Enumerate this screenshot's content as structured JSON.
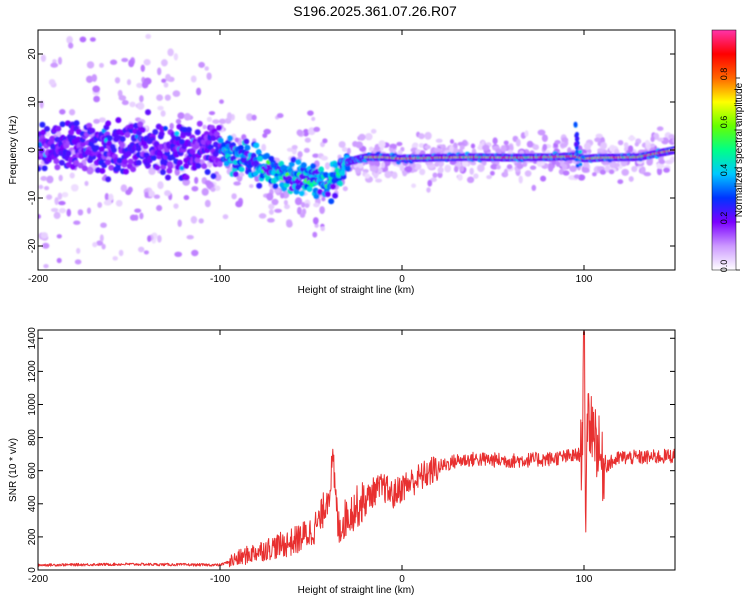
{
  "title": "S196.2025.361.07.26.R07",
  "chart_data": [
    {
      "type": "heatmap",
      "xlabel": "Height of straight line (km)",
      "ylabel": "Frequency (Hz)",
      "xlim": [
        -200,
        150
      ],
      "ylim": [
        -25,
        25
      ],
      "xticks": [
        -200,
        -100,
        0,
        100
      ],
      "xtick_labels": [
        "-200",
        "-100",
        "0",
        "100"
      ],
      "yticks": [
        -20,
        -10,
        0,
        10,
        20
      ],
      "ytick_labels": [
        "-20",
        "-10",
        "0",
        "10",
        "20"
      ],
      "ridge_x": [
        -200,
        -180,
        -160,
        -140,
        -120,
        -100,
        -90,
        -80,
        -70,
        -60,
        -50,
        -40,
        -35,
        -30,
        -20,
        -10,
        0,
        20,
        40,
        60,
        80,
        95,
        100,
        110,
        130,
        150
      ],
      "ridge_f": [
        0,
        0.5,
        1,
        0.5,
        0,
        0.5,
        -1.5,
        -3,
        -4.5,
        -5.5,
        -6,
        -7,
        -5,
        -2.5,
        -1.5,
        -1.5,
        -1.8,
        -1.6,
        -1.5,
        -1.6,
        -1.5,
        -1.3,
        -1.8,
        -1.6,
        -1.5,
        0
      ],
      "colorbar": {
        "label": "Normalized spectral amplitude",
        "range": [
          0,
          1
        ],
        "ticks": [
          0.0,
          0.2,
          0.4,
          0.6,
          0.8
        ],
        "tick_labels": [
          "0.0",
          "0.2",
          "0.4",
          "0.6",
          "0.8"
        ],
        "colors": [
          "#ffffff",
          "#cc99ff",
          "#7b00ff",
          "#0033ff",
          "#00c8ff",
          "#00ff88",
          "#66ff00",
          "#ffff00",
          "#ff6600",
          "#ff0000",
          "#ff33aa"
        ]
      }
    },
    {
      "type": "line",
      "xlabel": "Height of straight line (km)",
      "ylabel": "SNR (10 * v/v)",
      "xlim": [
        -200,
        150
      ],
      "ylim": [
        0,
        1450
      ],
      "xticks": [
        -200,
        -100,
        0,
        100
      ],
      "xtick_labels": [
        "-200",
        "-100",
        "0",
        "100"
      ],
      "yticks": [
        0,
        200,
        400,
        600,
        800,
        1000,
        1200,
        1400
      ],
      "ytick_labels": [
        "0",
        "200",
        "400",
        "600",
        "800",
        "1000",
        "1200",
        "1400"
      ],
      "color": "#e83030",
      "series": [
        {
          "name": "SNR",
          "x": [
            -200,
            -150,
            -100,
            -90,
            -80,
            -70,
            -60,
            -50,
            -45,
            -40,
            -38,
            -35,
            -30,
            -25,
            -20,
            -15,
            -10,
            -5,
            0,
            10,
            20,
            30,
            40,
            60,
            80,
            95,
            99,
            100,
            101,
            102,
            105,
            110,
            120,
            135,
            150
          ],
          "y": [
            30,
            35,
            30,
            70,
            110,
            140,
            170,
            230,
            300,
            480,
            650,
            250,
            330,
            380,
            420,
            480,
            500,
            450,
            500,
            560,
            620,
            660,
            670,
            660,
            670,
            690,
            700,
            1440,
            200,
            900,
            880,
            620,
            680,
            680,
            690
          ]
        }
      ]
    }
  ]
}
